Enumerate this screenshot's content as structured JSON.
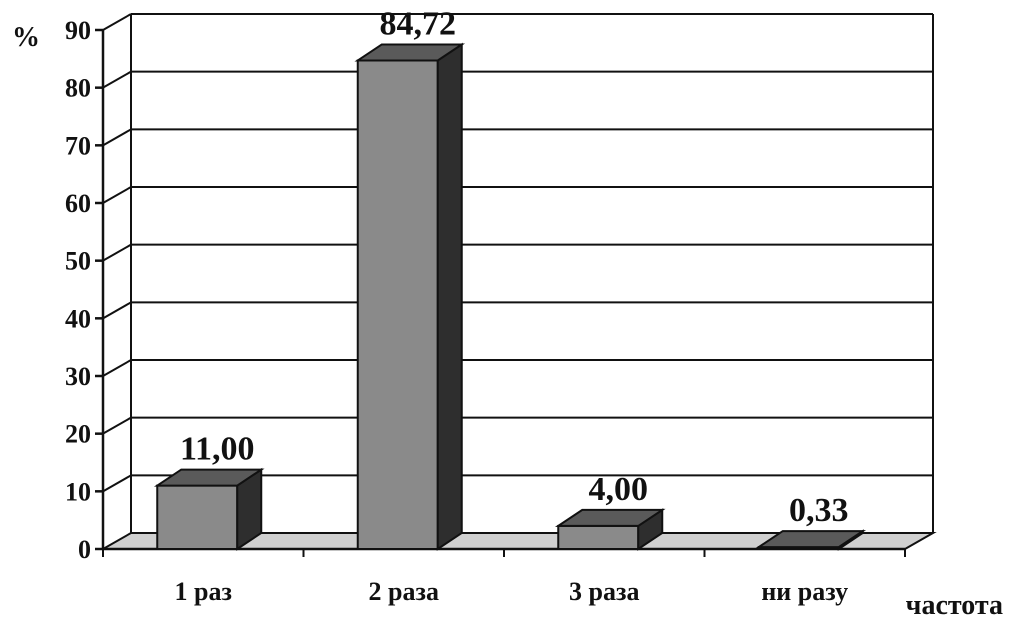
{
  "chart_data": {
    "type": "bar",
    "categories": [
      "1 раз",
      "2 раза",
      "3 раза",
      "ни разу"
    ],
    "values": [
      11.0,
      84.72,
      4.0,
      0.33
    ],
    "data_labels": [
      "11,00",
      "84,72",
      "4,00",
      "0,33"
    ],
    "y_ticks": [
      "0",
      "10",
      "20",
      "30",
      "40",
      "50",
      "60",
      "70",
      "80",
      "90"
    ],
    "ylabel": "%",
    "xlabel": "частота",
    "ylim": [
      0,
      90
    ],
    "grid": true,
    "style": "3d-column",
    "colors": {
      "bar_front": "#8a8a8a",
      "bar_top": "#5a5a5a",
      "bar_side": "#2e2e2e",
      "floor": "#d0d0d0",
      "grid": "#111111"
    }
  }
}
